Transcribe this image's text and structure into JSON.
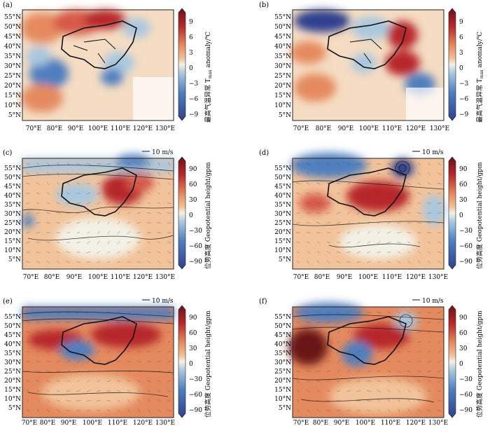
{
  "colors": {
    "neg_deep": "#2f3f8e",
    "neg_mid": "#4f7fbf",
    "neg_light": "#a9c7df",
    "neutral": "#f3f1e6",
    "pos_light": "#f2c39a",
    "pos_mid": "#e58a5e",
    "pos_deep": "#b7282c",
    "pos_dark": "#6b1218",
    "ocean_fill": "#f5dcc2",
    "frame": "#222222",
    "contour": "#111111",
    "vector": "#444444"
  },
  "axes": {
    "lon_ticks": [
      "70°E",
      "80°E",
      "90°E",
      "100°E",
      "110°E",
      "120°E",
      "130°E"
    ],
    "lat_ticks_top": [
      "55°N",
      "50°N",
      "45°N",
      "40°N",
      "35°N",
      "30°N",
      "25°N",
      "20°N",
      "15°N",
      "10°N",
      "5°N"
    ],
    "lat_ticks_rows": [
      "55°N",
      "50°N",
      "45°N",
      "40°N",
      "35°N",
      "30°N",
      "25°N",
      "20°N",
      "15°N",
      "10°N",
      "5°N"
    ]
  },
  "panels": [
    {
      "label": "(a)",
      "kind": "tmax",
      "vector_label": ""
    },
    {
      "label": "(b)",
      "kind": "tmax",
      "vector_label": ""
    },
    {
      "label": "(c)",
      "kind": "gph",
      "vector_label": "10 m/s"
    },
    {
      "label": "(d)",
      "kind": "gph",
      "vector_label": "10 m/s"
    },
    {
      "label": "(e)",
      "kind": "gph",
      "vector_label": "10 m/s"
    },
    {
      "label": "(f)",
      "kind": "gph",
      "vector_label": "10 m/s"
    }
  ],
  "colorbars": {
    "tmax": {
      "ticks": [
        "9",
        "6",
        "3",
        "0",
        "−3",
        "−6",
        "−9"
      ],
      "label_cn": "最高气温异常",
      "label_en": "T",
      "label_sub": "max",
      "label_en_tail": " anomaly/℃"
    },
    "gph": {
      "ticks": [
        "90",
        "60",
        "30",
        "0",
        "−30",
        "−60",
        "−90"
      ],
      "label_cn": "位势高度",
      "label_en": "Geopotential height/gpm"
    }
  }
}
